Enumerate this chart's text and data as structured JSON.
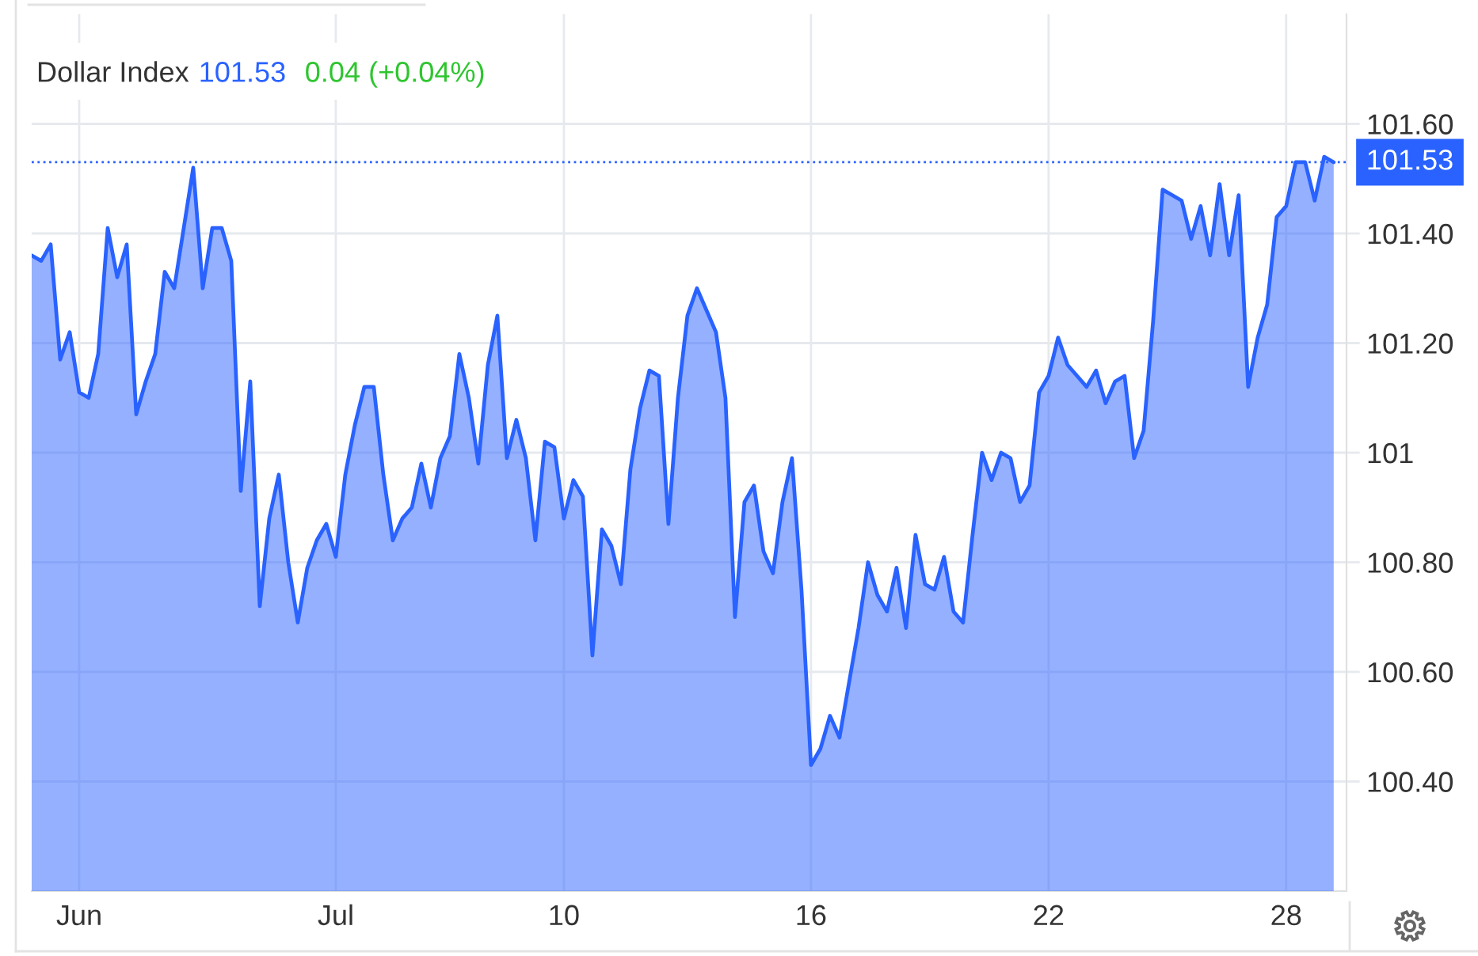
{
  "chart_data": {
    "type": "area",
    "title": "Dollar Index",
    "annotations": [
      "101.53",
      "0.04 (+0.04%)"
    ],
    "categories": [
      null,
      null,
      null,
      null,
      null,
      "Jun",
      null,
      null,
      null,
      null,
      null,
      null,
      null,
      null,
      null,
      null,
      null,
      null,
      null,
      null,
      null,
      null,
      null,
      null,
      null,
      null,
      null,
      null,
      null,
      null,
      null,
      null,
      "Jul",
      null,
      null,
      null,
      null,
      null,
      null,
      null,
      null,
      null,
      null,
      null,
      null,
      null,
      null,
      null,
      null,
      null,
      null,
      null,
      null,
      null,
      null,
      null,
      "10",
      null,
      null,
      null,
      null,
      null,
      null,
      null,
      null,
      null,
      null,
      null,
      null,
      null,
      null,
      null,
      null,
      null,
      null,
      null,
      null,
      null,
      null,
      null,
      null,
      null,
      "16",
      null,
      null,
      null,
      null,
      null,
      null,
      null,
      null,
      null,
      null,
      null,
      null,
      null,
      null,
      null,
      null,
      null,
      null,
      null,
      null,
      null,
      null,
      null,
      null,
      "22",
      null,
      null,
      null,
      null,
      null,
      null,
      null,
      null,
      null,
      null,
      null,
      null,
      null,
      null,
      null,
      null,
      null,
      null,
      null,
      null,
      null,
      null,
      null,
      null,
      "28",
      null,
      null,
      null,
      null,
      null
    ],
    "values": [
      101.36,
      101.35,
      101.38,
      101.17,
      101.22,
      101.11,
      101.1,
      101.18,
      101.41,
      101.32,
      101.38,
      101.07,
      101.13,
      101.18,
      101.33,
      101.3,
      101.41,
      101.52,
      101.3,
      101.41,
      101.41,
      101.35,
      100.93,
      101.13,
      100.72,
      100.88,
      100.96,
      100.8,
      100.69,
      100.79,
      100.84,
      100.87,
      100.81,
      100.96,
      101.05,
      101.12,
      101.12,
      100.96,
      100.84,
      100.88,
      100.9,
      100.98,
      100.9,
      100.99,
      101.03,
      101.18,
      101.1,
      100.98,
      101.16,
      101.25,
      100.99,
      101.06,
      100.99,
      100.84,
      101.02,
      101.01,
      100.88,
      100.95,
      100.92,
      100.63,
      100.86,
      100.83,
      100.76,
      100.97,
      101.08,
      101.15,
      101.14,
      100.87,
      101.1,
      101.25,
      101.3,
      101.26,
      101.22,
      101.1,
      100.7,
      100.91,
      100.94,
      100.82,
      100.78,
      100.91,
      100.99,
      100.75,
      100.43,
      100.46,
      100.52,
      100.48,
      100.58,
      100.68,
      100.8,
      100.74,
      100.71,
      100.79,
      100.68,
      100.85,
      100.76,
      100.75,
      100.81,
      100.71,
      100.69,
      100.85,
      101.0,
      100.95,
      101.0,
      100.99,
      100.91,
      100.94,
      101.11,
      101.14,
      101.21,
      101.16,
      101.14,
      101.12,
      101.15,
      101.09,
      101.13,
      101.14,
      100.99,
      101.04,
      101.24,
      101.48,
      101.47,
      101.46,
      101.39,
      101.45,
      101.36,
      101.49,
      101.36,
      101.47,
      101.12,
      101.21,
      101.27,
      101.43,
      101.45,
      101.53,
      101.53,
      101.46,
      101.54,
      101.53
    ],
    "color": "#2962ff",
    "ylim": [
      100.2,
      101.8
    ],
    "yticks": [
      {
        "value": 100.4,
        "label": "100.40"
      },
      {
        "value": 100.6,
        "label": "100.60"
      },
      {
        "value": 100.8,
        "label": "100.80"
      },
      101,
      {
        "value": 101.2,
        "label": "101.20"
      },
      {
        "value": 101.4,
        "label": "101.40"
      },
      {
        "value": 101.6,
        "label": "101.60"
      }
    ],
    "ref_lines": [
      {
        "axis": "y",
        "value": 101.53,
        "label": "101.53",
        "color": "#2962ff",
        "line_style": "dotted"
      }
    ],
    "grid": true
  }
}
